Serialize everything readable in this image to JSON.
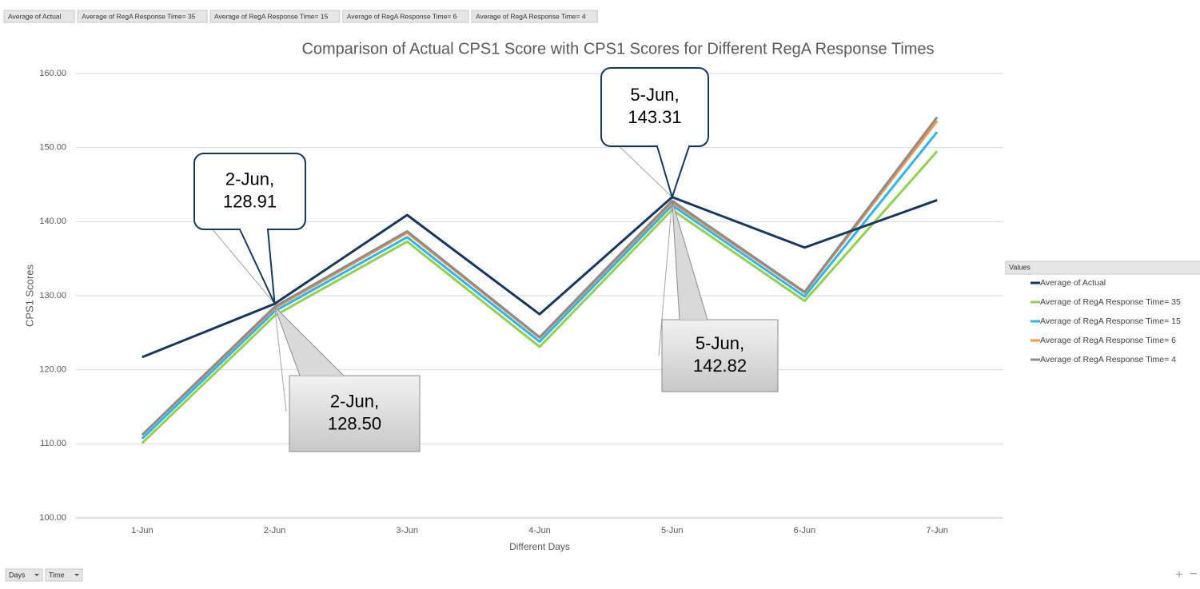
{
  "chart_data": {
    "type": "line",
    "title": "Comparison of Actual CPS1 Score with CPS1 Scores for Different RegA Response Times",
    "x_label": "Different Days",
    "y_label": "CPS1 Scores",
    "categories": [
      "1-Jun",
      "2-Jun",
      "3-Jun",
      "4-Jun",
      "5-Jun",
      "6-Jun",
      "7-Jun"
    ],
    "series": [
      {
        "name": "Average of Actual",
        "color": "#17375e",
        "values": [
          121.7,
          128.91,
          140.9,
          127.5,
          143.31,
          136.5,
          142.9
        ]
      },
      {
        "name": "Average of RegA Response Time= 35",
        "color": "#92d050",
        "values": [
          110.1,
          127.3,
          137.3,
          123.1,
          141.6,
          129.3,
          149.5
        ]
      },
      {
        "name": "Average of RegA Response Time= 15",
        "color": "#2cb5ee",
        "values": [
          110.7,
          127.9,
          137.9,
          123.8,
          142.2,
          129.9,
          152.1
        ]
      },
      {
        "name": "Average of RegA Response Time= 6",
        "color": "#f79646",
        "values": [
          111.2,
          128.3,
          138.5,
          124.3,
          142.6,
          130.4,
          153.6
        ]
      },
      {
        "name": "Average of RegA Response Time= 4",
        "color": "#8c8c8c",
        "values": [
          111.2,
          128.5,
          138.7,
          124.4,
          142.82,
          130.5,
          154.1
        ]
      }
    ],
    "ylim": [
      100,
      160
    ],
    "yticks": [
      {
        "value": 100,
        "label": "100.00"
      },
      {
        "value": 110,
        "label": "110.00"
      },
      {
        "value": 120,
        "label": "120.00"
      },
      {
        "value": 130,
        "label": "130.00"
      },
      {
        "value": 140,
        "label": "140.00"
      },
      {
        "value": 150,
        "label": "150.00"
      },
      {
        "value": 160,
        "label": "160.00"
      }
    ],
    "grid": true,
    "legend_title": "Values",
    "legend": "right",
    "annotations": [
      {
        "lines": [
          "2-Jun,",
          "128.91"
        ]
      },
      {
        "lines": [
          "5-Jun,",
          "143.31"
        ]
      },
      {
        "lines": [
          "2-Jun,",
          "128.50"
        ]
      },
      {
        "lines": [
          "5-Jun,",
          "142.82"
        ]
      }
    ],
    "filter_buttons": [
      "Days",
      "Time"
    ]
  }
}
